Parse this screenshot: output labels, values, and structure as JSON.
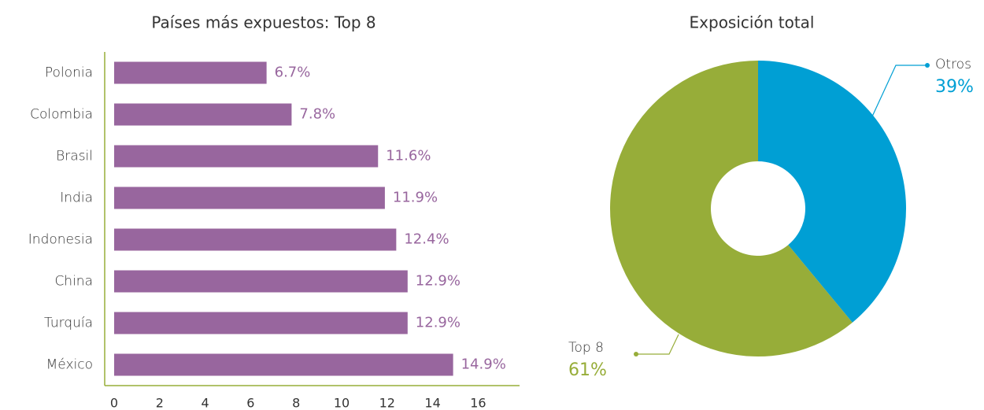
{
  "chart_data": [
    {
      "type": "barh",
      "title": "Países más expuestos: Top 8",
      "categories": [
        "Polonia",
        "Colombia",
        "Brasil",
        "India",
        "Indonesia",
        "China",
        "Turquía",
        "México"
      ],
      "values": [
        6.7,
        7.8,
        11.6,
        11.9,
        12.4,
        12.9,
        12.9,
        14.9
      ],
      "value_labels": [
        "6.7%",
        "7.8%",
        "11.6%",
        "11.9%",
        "12.4%",
        "12.9%",
        "12.9%",
        "14.9%"
      ],
      "color": "#98669e",
      "xlim": [
        0,
        18
      ],
      "xticks": [
        0,
        2,
        4,
        6,
        8,
        10,
        12,
        14,
        16
      ],
      "grid": false
    },
    {
      "type": "donut",
      "title": "Exposición total",
      "categories": [
        "Otros",
        "Top 8"
      ],
      "values": [
        39,
        61
      ],
      "value_labels": [
        "39%",
        "61%"
      ],
      "colors": [
        "#009fd4",
        "#97ad39"
      ]
    }
  ]
}
